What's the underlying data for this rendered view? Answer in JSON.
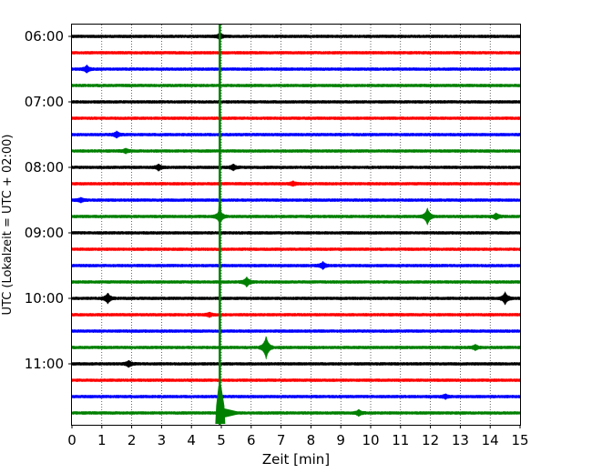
{
  "chart_data": {
    "type": "line",
    "chart_kind": "helicorder seismogram",
    "xlabel": "Zeit  [min]",
    "ylabel": "UTC (Lokalzeit = UTC + 02:00)",
    "xlim": [
      0,
      15
    ],
    "x_ticks": [
      "0",
      "1",
      "2",
      "3",
      "4",
      "5",
      "6",
      "7",
      "8",
      "9",
      "10",
      "11",
      "12",
      "13",
      "14",
      "15"
    ],
    "y_ticks": [
      "06:00",
      "07:00",
      "08:00",
      "09:00",
      "10:00",
      "11:00"
    ],
    "trace_interval_min": 15,
    "grid": "vertical dotted",
    "trace_colors": [
      "#000000",
      "#ff0000",
      "#0000ff",
      "#008000"
    ],
    "traces": [
      {
        "start": "06:00",
        "events": [
          {
            "t": 4.95,
            "amp": 0.3
          }
        ]
      },
      {
        "start": "06:15",
        "events": []
      },
      {
        "start": "06:30",
        "events": [
          {
            "t": 0.5,
            "amp": 0.35
          }
        ]
      },
      {
        "start": "06:45",
        "events": []
      },
      {
        "start": "07:00",
        "events": []
      },
      {
        "start": "07:15",
        "events": []
      },
      {
        "start": "07:30",
        "events": [
          {
            "t": 1.5,
            "amp": 0.3
          }
        ]
      },
      {
        "start": "07:45",
        "events": [
          {
            "t": 1.8,
            "amp": 0.2
          }
        ]
      },
      {
        "start": "08:00",
        "events": [
          {
            "t": 2.9,
            "amp": 0.3
          },
          {
            "t": 5.4,
            "amp": 0.3
          }
        ]
      },
      {
        "start": "08:15",
        "events": [
          {
            "t": 7.4,
            "amp": 0.2
          }
        ]
      },
      {
        "start": "08:30",
        "events": [
          {
            "t": 0.3,
            "amp": 0.2
          }
        ]
      },
      {
        "start": "08:45",
        "events": [
          {
            "t": 4.95,
            "amp": 0.8
          },
          {
            "t": 11.9,
            "amp": 0.9
          },
          {
            "t": 14.2,
            "amp": 0.3
          }
        ]
      },
      {
        "start": "09:00",
        "events": []
      },
      {
        "start": "09:15",
        "events": []
      },
      {
        "start": "09:30",
        "events": [
          {
            "t": 8.4,
            "amp": 0.35
          }
        ]
      },
      {
        "start": "09:45",
        "events": [
          {
            "t": 5.85,
            "amp": 0.5
          }
        ]
      },
      {
        "start": "10:00",
        "events": [
          {
            "t": 1.2,
            "amp": 0.55
          },
          {
            "t": 14.5,
            "amp": 0.65
          }
        ]
      },
      {
        "start": "10:15",
        "events": [
          {
            "t": 4.6,
            "amp": 0.2
          }
        ]
      },
      {
        "start": "10:30",
        "events": []
      },
      {
        "start": "10:45",
        "events": [
          {
            "t": 6.5,
            "amp": 1.3
          },
          {
            "t": 13.5,
            "amp": 0.25
          }
        ]
      },
      {
        "start": "11:00",
        "events": [
          {
            "t": 1.9,
            "amp": 0.3
          }
        ]
      },
      {
        "start": "11:15",
        "events": []
      },
      {
        "start": "11:30",
        "events": [
          {
            "t": 12.5,
            "amp": 0.2
          }
        ]
      },
      {
        "start": "11:45",
        "events": [
          {
            "t": 9.6,
            "amp": 0.3
          }
        ]
      }
    ],
    "continuous_signal": {
      "trace_start": "06:00",
      "trace_end": "11:45",
      "t": 4.95,
      "color": "#008000",
      "peak_trace": "11:45",
      "peak_amp": 5.0
    }
  }
}
